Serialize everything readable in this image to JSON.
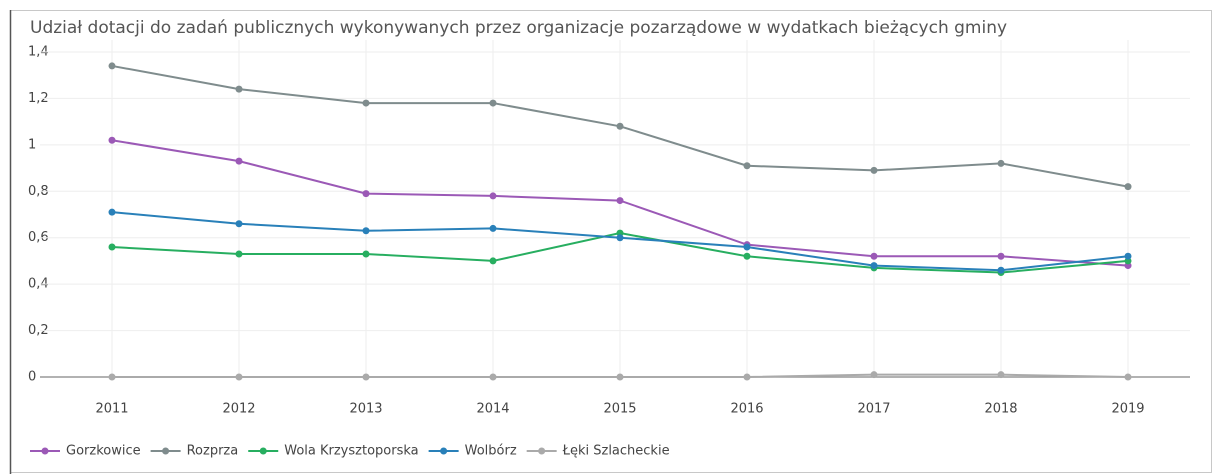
{
  "chart_data": {
    "type": "line",
    "title": "Udział dotacji do zadań publicznych wykonywanych przez organizacje pozarządowe w wydatkach bieżących gminy",
    "categories": [
      "2011",
      "2012",
      "2013",
      "2014",
      "2015",
      "2016",
      "2017",
      "2018",
      "2019"
    ],
    "series": [
      {
        "name": "Gorzkowice",
        "color": "#9b59b6",
        "values": [
          1.02,
          0.93,
          0.79,
          0.78,
          0.76,
          0.57,
          0.52,
          0.52,
          0.48
        ]
      },
      {
        "name": "Rozprza",
        "color": "#7f8c8d",
        "values": [
          1.34,
          1.24,
          1.18,
          1.18,
          1.08,
          0.91,
          0.89,
          0.92,
          0.82
        ]
      },
      {
        "name": "Wola Krzysztoporska",
        "color": "#27ae60",
        "values": [
          0.56,
          0.53,
          0.53,
          0.5,
          0.62,
          0.52,
          0.47,
          0.45,
          0.5
        ]
      },
      {
        "name": "Wolbórz",
        "color": "#2980b9",
        "values": [
          0.71,
          0.66,
          0.63,
          0.64,
          0.6,
          0.56,
          0.48,
          0.46,
          0.52
        ]
      },
      {
        "name": "Łęki Szlacheckie",
        "color": "#aaaaaa",
        "values": [
          0,
          0,
          0,
          0,
          0,
          0,
          0.01,
          0.01,
          0
        ]
      }
    ],
    "ylim": [
      0,
      1.4
    ],
    "yticks": [
      0,
      {
        "value": 0.2,
        "label": "0,2"
      },
      {
        "value": 0.4,
        "label": "0,4"
      },
      {
        "value": 0.6,
        "label": "0,6"
      },
      {
        "value": 0.8,
        "label": "0,8"
      },
      1,
      {
        "value": 1.2,
        "label": "1,2"
      },
      {
        "value": 1.4,
        "label": "1,4"
      }
    ],
    "grid": true
  }
}
